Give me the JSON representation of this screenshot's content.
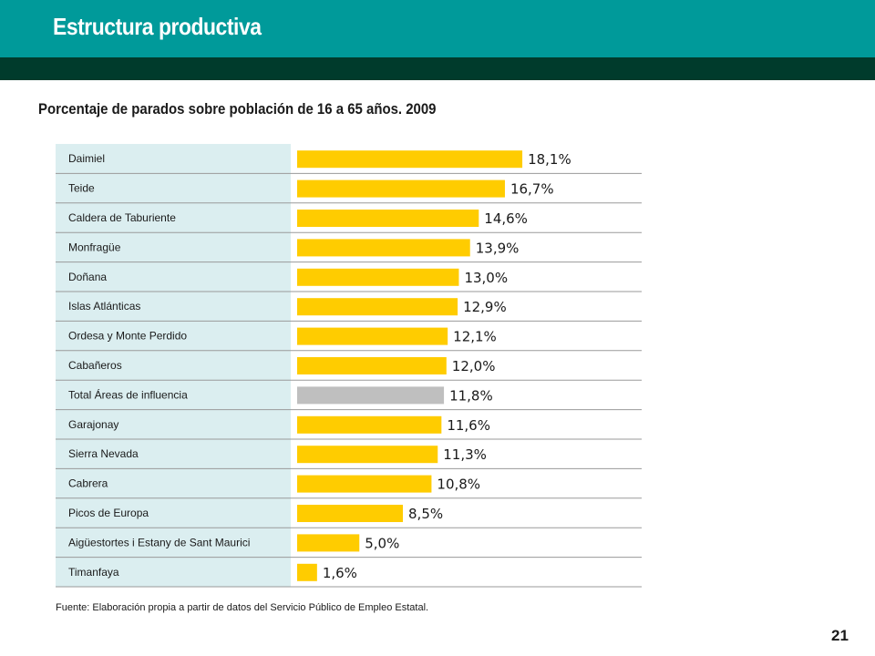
{
  "header": {
    "title": "Estructura productiva"
  },
  "chart_data": {
    "type": "bar",
    "orientation": "horizontal",
    "title": "Porcentaje de parados sobre población de 16 a 65 años. 2009",
    "categories": [
      "Daimiel",
      "Teide",
      "Caldera de Taburiente",
      "Monfragüe",
      "Doñana",
      "Islas Atlánticas",
      "Ordesa y Monte Perdido",
      "Cabañeros",
      "Total Áreas de influencia",
      "Garajonay",
      "Sierra Nevada",
      "Cabrera",
      "Picos de Europa",
      "Aigüestortes i Estany de Sant Maurici",
      "Timanfaya"
    ],
    "values": [
      18.1,
      16.7,
      14.6,
      13.9,
      13.0,
      12.9,
      12.1,
      12.0,
      11.8,
      11.6,
      11.3,
      10.8,
      8.5,
      5.0,
      1.6
    ],
    "value_labels": [
      "18,1%",
      "16,7%",
      "14,6%",
      "13,9%",
      "13,0%",
      "12,9%",
      "12,1%",
      "12,0%",
      "11,8%",
      "11,6%",
      "11,3%",
      "10,8%",
      "8,5%",
      "5,0%",
      "1,6%"
    ],
    "highlight_index": 8,
    "colors": {
      "bar": "#ffcc00",
      "highlight": "#bfbfbf",
      "label_panel": "#dbeef0",
      "row_divider": "#9a9a9a"
    },
    "grid": false,
    "legend": "none"
  },
  "footer": {
    "source": "Fuente: Elaboración propia a partir de datos del Servicio Público de Empleo Estatal.",
    "page_number": "21"
  },
  "theme": {
    "header_primary": "#009a9a",
    "header_dark": "#003b2c"
  }
}
